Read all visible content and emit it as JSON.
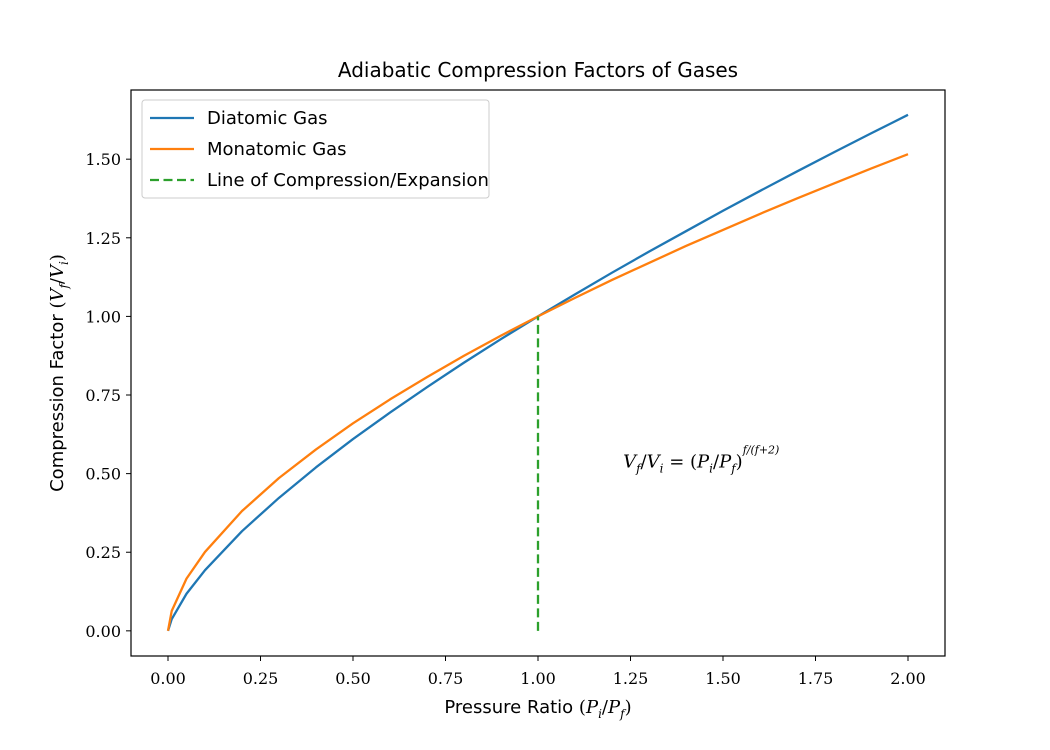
{
  "chart_data": {
    "type": "line",
    "title": "Adiabatic Compression Factors of Gases",
    "xlabel": "Pressure Ratio (P_i/P_f)",
    "ylabel": "Compression Factor (V_f/V_i)",
    "xlim": [
      -0.1,
      2.1
    ],
    "ylim": [
      -0.08,
      1.72
    ],
    "xticks": [
      0.0,
      0.25,
      0.5,
      0.75,
      1.0,
      1.25,
      1.5,
      1.75,
      2.0
    ],
    "xtick_labels": [
      "0.00",
      "0.25",
      "0.50",
      "0.75",
      "1.00",
      "1.25",
      "1.50",
      "1.75",
      "2.00"
    ],
    "yticks": [
      0.0,
      0.25,
      0.5,
      0.75,
      1.0,
      1.25,
      1.5
    ],
    "ytick_labels": [
      "0.00",
      "0.25",
      "0.50",
      "0.75",
      "1.00",
      "1.25",
      "1.50"
    ],
    "grid": false,
    "legend_position": "top-left",
    "annotation": "V_f/V_i = (P_i/P_f)^(f/(f+2))",
    "annotation_at": [
      1.23,
      0.52
    ],
    "series": [
      {
        "name": "Diatomic Gas",
        "color": "#1f77b4",
        "style": "solid",
        "x": [
          0.0,
          0.01,
          0.05,
          0.1,
          0.2,
          0.3,
          0.4,
          0.5,
          0.6,
          0.7,
          0.8,
          0.9,
          1.0,
          1.1,
          1.2,
          1.3,
          1.4,
          1.5,
          1.6,
          1.7,
          1.8,
          1.9,
          2.0
        ],
        "y": [
          0.0,
          0.037,
          0.118,
          0.193,
          0.317,
          0.423,
          0.52,
          0.61,
          0.694,
          0.775,
          0.853,
          0.928,
          1.0,
          1.07,
          1.139,
          1.206,
          1.271,
          1.336,
          1.399,
          1.461,
          1.522,
          1.582,
          1.641
        ]
      },
      {
        "name": "Monatomic Gas",
        "color": "#ff7f0e",
        "style": "solid",
        "x": [
          0.0,
          0.01,
          0.05,
          0.1,
          0.2,
          0.3,
          0.4,
          0.5,
          0.6,
          0.7,
          0.8,
          0.9,
          1.0,
          1.1,
          1.2,
          1.3,
          1.4,
          1.5,
          1.6,
          1.7,
          1.8,
          1.9,
          2.0
        ],
        "y": [
          0.0,
          0.063,
          0.166,
          0.251,
          0.381,
          0.486,
          0.577,
          0.66,
          0.736,
          0.807,
          0.875,
          0.939,
          1.0,
          1.059,
          1.116,
          1.17,
          1.224,
          1.275,
          1.326,
          1.375,
          1.423,
          1.47,
          1.516
        ]
      },
      {
        "name": "Line of Compression/Expansion",
        "color": "#2ca02c",
        "style": "dashed",
        "x": [
          1.0,
          1.0
        ],
        "y": [
          0.0,
          1.0
        ]
      }
    ]
  }
}
